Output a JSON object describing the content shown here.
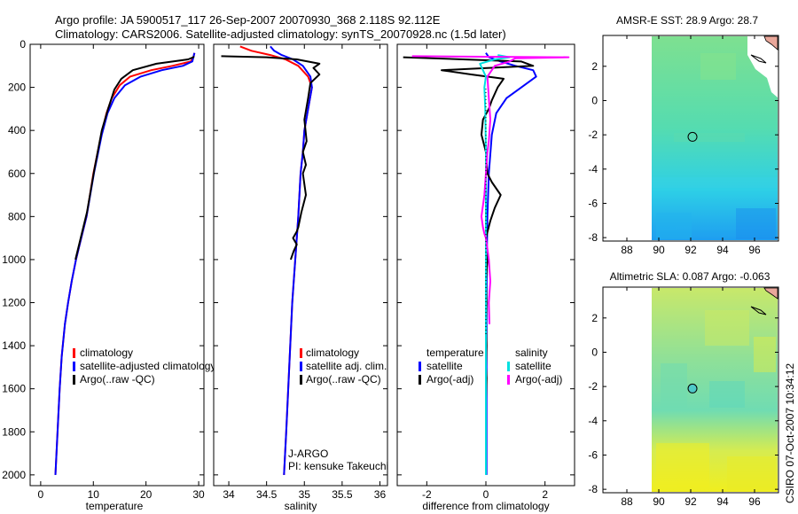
{
  "header": {
    "line1": "Argo profile: JA 5900517_117 26-Sep-2007 20070930_368 2.118S 92.112E",
    "line2": "Climatology: CARS2006. Satellite-adjusted climatology: synTS_20070928.nc (1.5d later)"
  },
  "footer": {
    "credit": "CSIRO 07-Oct-2007 10:34:12"
  },
  "colors": {
    "climatology": "#ff0000",
    "satellite": "#0000ff",
    "argo": "#000000",
    "salinity_satellite": "#00e0e0",
    "salinity_argo": "#ff00ff"
  },
  "chart_data": [
    {
      "type": "line",
      "xlabel": "temperature",
      "ylabel": "",
      "xlim": [
        -2,
        31
      ],
      "ylim": [
        0,
        2050
      ],
      "y_inverted": true,
      "xticks": [
        0,
        10,
        20,
        30
      ],
      "yticks": [
        0,
        200,
        400,
        600,
        800,
        1000,
        1200,
        1400,
        1600,
        1800,
        2000
      ],
      "legend": [
        "climatology",
        "satellite-adjusted climatology",
        "Argo(..raw -QC)"
      ],
      "series": [
        {
          "name": "climatology",
          "color": "#ff0000",
          "x": [
            29.2,
            29.0,
            28.5,
            25,
            21,
            17,
            15,
            13.5,
            12.5,
            11.5,
            10,
            8.7,
            7.7,
            6.7,
            5.9,
            5.2,
            4.6,
            4.0,
            3.6,
            3.2,
            2.8
          ],
          "y": [
            40,
            60,
            80,
            100,
            120,
            150,
            190,
            250,
            320,
            420,
            600,
            800,
            900,
            1000,
            1100,
            1200,
            1300,
            1450,
            1600,
            1800,
            2000
          ]
        },
        {
          "name": "satellite-adjusted climatology",
          "color": "#0000ff",
          "x": [
            29.2,
            29.0,
            28.8,
            27,
            23,
            19,
            16,
            14,
            12.7,
            11.6,
            10.1,
            8.7,
            7.7,
            6.7,
            5.9,
            5.2,
            4.6,
            4.0,
            3.6,
            3.2,
            2.8
          ],
          "y": [
            40,
            60,
            80,
            100,
            120,
            150,
            190,
            250,
            320,
            420,
            600,
            800,
            900,
            1000,
            1100,
            1200,
            1300,
            1450,
            1600,
            1800,
            2000
          ]
        },
        {
          "name": "Argo(..raw -QC)",
          "color": "#000000",
          "x": [
            29.1,
            29.0,
            28.0,
            22,
            17.5,
            15.3,
            14.0,
            12.8,
            11.6,
            10.2,
            8.8,
            7.6,
            6.6
          ],
          "y": [
            55,
            60,
            70,
            90,
            120,
            160,
            210,
            300,
            400,
            580,
            780,
            900,
            1000
          ]
        }
      ]
    },
    {
      "type": "line",
      "xlabel": "salinity",
      "xlim": [
        33.8,
        36.1
      ],
      "ylim": [
        0,
        2050
      ],
      "y_inverted": true,
      "xticks": [
        34,
        34.5,
        35,
        35.5,
        36
      ],
      "legend": [
        "climatology",
        "satellite adj. clim.",
        "Argo(..raw -QC)"
      ],
      "annotations": [
        "J-ARGO",
        "PI: kensuke Takeuchi"
      ],
      "series": [
        {
          "name": "climatology",
          "color": "#ff0000",
          "x": [
            34.15,
            34.3,
            34.55,
            34.75,
            34.92,
            35.05,
            35.1,
            35.05,
            35.0,
            34.98,
            34.95,
            34.92,
            34.88,
            34.84,
            34.8,
            34.76,
            34.73
          ],
          "y": [
            10,
            30,
            50,
            70,
            100,
            150,
            200,
            300,
            400,
            500,
            600,
            800,
            1000,
            1200,
            1500,
            1800,
            2000
          ]
        },
        {
          "name": "satellite adj. clim.",
          "color": "#0000ff",
          "x": [
            34.55,
            34.6,
            34.7,
            34.85,
            34.98,
            35.08,
            35.1,
            35.05,
            35.0,
            34.98,
            34.95,
            34.92,
            34.88,
            34.84,
            34.8,
            34.76,
            34.73
          ],
          "y": [
            10,
            30,
            50,
            70,
            100,
            150,
            200,
            300,
            400,
            500,
            600,
            800,
            1000,
            1200,
            1500,
            1800,
            2000
          ]
        },
        {
          "name": "Argo(..raw -QC)",
          "color": "#000000",
          "x": [
            33.9,
            34.5,
            34.9,
            35.2,
            35.12,
            35.2,
            35.08,
            35.05,
            35.0,
            35.03,
            34.98,
            35.02,
            34.98,
            35.02,
            34.96,
            34.92,
            34.9,
            34.85,
            34.9,
            34.86,
            34.82
          ],
          "y": [
            55,
            60,
            70,
            90,
            110,
            140,
            180,
            250,
            350,
            450,
            500,
            560,
            600,
            700,
            780,
            850,
            870,
            900,
            930,
            960,
            1000
          ]
        }
      ]
    },
    {
      "type": "line",
      "xlabel": "difference from climatology",
      "xlim": [
        -3,
        3
      ],
      "ylim": [
        0,
        2050
      ],
      "y_inverted": true,
      "xticks": [
        -2,
        0,
        2
      ],
      "legend": [
        {
          "group": "temperature",
          "entries": [
            "satellite",
            "Argo(-adj)"
          ]
        },
        {
          "group": "salinity",
          "entries": [
            "satellite",
            "Argo(-adj)"
          ]
        }
      ],
      "series": [
        {
          "name": "temperature satellite",
          "color": "#0000ff",
          "x": [
            0.0,
            0.1,
            0.5,
            1.0,
            1.6,
            1.7,
            1.3,
            0.7,
            0.35,
            0.2,
            0.1,
            0.05,
            0.03,
            0.02,
            0.02,
            0.02,
            0.02,
            0.02
          ],
          "y": [
            40,
            60,
            80,
            100,
            120,
            150,
            190,
            250,
            320,
            420,
            600,
            800,
            1000,
            1200,
            1400,
            1600,
            1800,
            2000
          ]
        },
        {
          "name": "temperature Argo(-adj)",
          "color": "#000000",
          "x": [
            -2.8,
            1.2,
            1.6,
            -1.5,
            -0.5,
            0.6,
            0.4,
            0.2,
            0.1,
            -0.1,
            -0.15,
            0.0,
            0.05,
            0.2,
            0.5,
            0.3,
            0.15,
            0.0,
            0.05,
            0.0,
            0.02,
            0.0,
            0.02,
            0.0,
            0.02,
            0.0
          ],
          "y": [
            60,
            80,
            100,
            120,
            140,
            160,
            200,
            260,
            300,
            350,
            420,
            500,
            600,
            640,
            700,
            760,
            820,
            900,
            1000,
            1100,
            1200,
            1300,
            1400,
            1500,
            1550,
            1650
          ]
        },
        {
          "name": "salinity satellite",
          "color": "#00e0e0",
          "x": [
            0.4,
            0.8,
            0.3,
            -0.2,
            -0.1,
            0.0,
            -0.05,
            -0.02,
            0.0,
            0.0,
            0.0,
            0.0,
            0.0,
            0.0,
            0.0
          ],
          "y": [
            50,
            60,
            70,
            90,
            120,
            150,
            200,
            300,
            500,
            800,
            1100,
            1400,
            1700,
            1900,
            2000
          ]
        },
        {
          "name": "salinity Argo(-adj)",
          "color": "#ff00ff",
          "x": [
            -2.5,
            0.5,
            2.8,
            1.0,
            0.8,
            0.3,
            0.05,
            0.1,
            0.15,
            0.1,
            0.05,
            0.0,
            -0.05,
            -0.15,
            -0.1,
            -0.05,
            0.0,
            0.05,
            0.1,
            0.15,
            0.1,
            0.12
          ],
          "y": [
            55,
            58,
            60,
            65,
            80,
            100,
            150,
            250,
            350,
            450,
            500,
            600,
            700,
            800,
            850,
            880,
            900,
            950,
            1000,
            1100,
            1200,
            1300
          ]
        }
      ]
    },
    {
      "type": "heatmap",
      "title": "AMSR-E SST: 28.9 Argo: 28.7",
      "xlim": [
        86.5,
        97.5
      ],
      "ylim": [
        -8.2,
        3.8
      ],
      "xticks": [
        88,
        90,
        92,
        94,
        96
      ],
      "yticks": [
        -8,
        -6,
        -4,
        -2,
        0,
        2
      ],
      "data_region": {
        "x": [
          90,
          97.5
        ],
        "y": [
          -8.2,
          3.8
        ]
      },
      "marker": {
        "lon": 92.112,
        "lat": -2.118
      }
    },
    {
      "type": "heatmap",
      "title": "Altimetric SLA: 0.087 Argo: -0.063",
      "xlim": [
        86.5,
        97.5
      ],
      "ylim": [
        -8.2,
        3.8
      ],
      "xticks": [
        88,
        90,
        92,
        94,
        96
      ],
      "yticks": [
        -8,
        -6,
        -4,
        -2,
        0,
        2
      ],
      "data_region": {
        "x": [
          90,
          97.5
        ],
        "y": [
          -8.2,
          3.8
        ]
      },
      "marker": {
        "lon": 92.112,
        "lat": -2.118
      }
    }
  ]
}
